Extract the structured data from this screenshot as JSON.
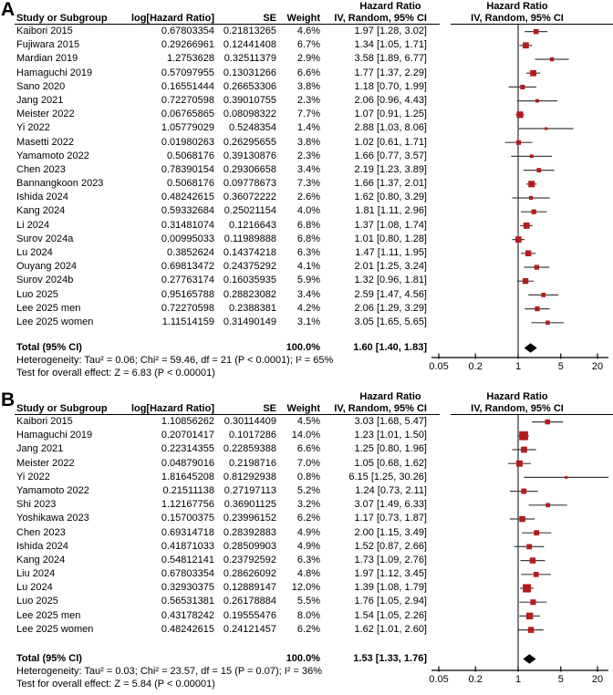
{
  "colors": {
    "marker": "#b21c1c",
    "ci_line": "#404040",
    "diamond": "#000000",
    "axis": "#000000"
  },
  "chart_data": [
    {
      "type": "forest",
      "panel_label": "A",
      "col_headers": {
        "study": "Study or Subgroup",
        "log_hr": "log[Hazard Ratio]",
        "se": "SE",
        "weight": "Weight",
        "hr_text_group": "Hazard Ratio",
        "hr_text_sub": "IV, Random, 95% CI",
        "hr_plot_group": "Hazard Ratio",
        "hr_plot_sub": "IV, Random, 95% CI"
      },
      "x_axis": {
        "scale": "log",
        "ticks": [
          0.05,
          0.2,
          1,
          5,
          20
        ]
      },
      "rows": [
        {
          "study": "Kaibori 2015",
          "log_hr": "0.67803354",
          "se": "0.21813265",
          "weight": "4.6%",
          "hr": 1.97,
          "lo": 1.28,
          "hi": 3.02,
          "ci_text": "1.97 [1.28, 3.02]"
        },
        {
          "study": "Fujiwara 2015",
          "log_hr": "0.29266961",
          "se": "0.12441408",
          "weight": "6.7%",
          "hr": 1.34,
          "lo": 1.05,
          "hi": 1.71,
          "ci_text": "1.34 [1.05, 1.71]"
        },
        {
          "study": "Mardian 2019",
          "log_hr": "1.2753628",
          "se": "0.32511379",
          "weight": "2.9%",
          "hr": 3.58,
          "lo": 1.89,
          "hi": 6.77,
          "ci_text": "3.58 [1.89, 6.77]"
        },
        {
          "study": "Hamaguchi 2019",
          "log_hr": "0.57097955",
          "se": "0.13031266",
          "weight": "6.6%",
          "hr": 1.77,
          "lo": 1.37,
          "hi": 2.29,
          "ci_text": "1.77 [1.37, 2.29]"
        },
        {
          "study": "Sano 2020",
          "log_hr": "0.16551444",
          "se": "0.26653306",
          "weight": "3.8%",
          "hr": 1.18,
          "lo": 0.7,
          "hi": 1.99,
          "ci_text": "1.18 [0.70, 1.99]"
        },
        {
          "study": "Jang 2021",
          "log_hr": "0.72270598",
          "se": "0.39010755",
          "weight": "2.3%",
          "hr": 2.06,
          "lo": 0.96,
          "hi": 4.43,
          "ci_text": "2.06 [0.96, 4.43]"
        },
        {
          "study": "Meister 2022",
          "log_hr": "0.06765865",
          "se": "0.08098322",
          "weight": "7.7%",
          "hr": 1.07,
          "lo": 0.91,
          "hi": 1.25,
          "ci_text": "1.07 [0.91, 1.25]"
        },
        {
          "study": "Yi 2022",
          "log_hr": "1.05779029",
          "se": "0.5248354",
          "weight": "1.4%",
          "hr": 2.88,
          "lo": 1.03,
          "hi": 8.06,
          "ci_text": "2.88 [1.03, 8.06]"
        },
        {
          "study": "Masetti 2022",
          "log_hr": "0.01980263",
          "se": "0.26295655",
          "weight": "3.8%",
          "hr": 1.02,
          "lo": 0.61,
          "hi": 1.71,
          "ci_text": "1.02 [0.61, 1.71]"
        },
        {
          "study": "Yamamoto 2022",
          "log_hr": "0.5068176",
          "se": "0.39130876",
          "weight": "2.3%",
          "hr": 1.66,
          "lo": 0.77,
          "hi": 3.57,
          "ci_text": "1.66 [0.77, 3.57]"
        },
        {
          "study": "Chen 2023",
          "log_hr": "0.78390154",
          "se": "0.29306658",
          "weight": "3.4%",
          "hr": 2.19,
          "lo": 1.23,
          "hi": 3.89,
          "ci_text": "2.19 [1.23, 3.89]"
        },
        {
          "study": "Bannangkoon 2023",
          "log_hr": "0.5068176",
          "se": "0.09778673",
          "weight": "7.3%",
          "hr": 1.66,
          "lo": 1.37,
          "hi": 2.01,
          "ci_text": "1.66 [1.37, 2.01]"
        },
        {
          "study": "Ishida 2024",
          "log_hr": "0.48242615",
          "se": "0.36072222",
          "weight": "2.6%",
          "hr": 1.62,
          "lo": 0.8,
          "hi": 3.29,
          "ci_text": "1.62 [0.80, 3.29]"
        },
        {
          "study": "Kang 2024",
          "log_hr": "0.59332684",
          "se": "0.25021154",
          "weight": "4.0%",
          "hr": 1.81,
          "lo": 1.11,
          "hi": 2.96,
          "ci_text": "1.81 [1.11, 2.96]"
        },
        {
          "study": "Li 2024",
          "log_hr": "0.31481074",
          "se": "0.1216643",
          "weight": "6.8%",
          "hr": 1.37,
          "lo": 1.08,
          "hi": 1.74,
          "ci_text": "1.37 [1.08, 1.74]"
        },
        {
          "study": "Surov 2024a",
          "log_hr": "0.00995033",
          "se": "0.11989888",
          "weight": "6.8%",
          "hr": 1.01,
          "lo": 0.8,
          "hi": 1.28,
          "ci_text": "1.01 [0.80, 1.28]"
        },
        {
          "study": "Lu 2024",
          "log_hr": "0.3852624",
          "se": "0.14374218",
          "weight": "6.3%",
          "hr": 1.47,
          "lo": 1.11,
          "hi": 1.95,
          "ci_text": "1.47 [1.11, 1.95]"
        },
        {
          "study": "Ouyang 2024",
          "log_hr": "0.69813472",
          "se": "0.24375292",
          "weight": "4.1%",
          "hr": 2.01,
          "lo": 1.25,
          "hi": 3.24,
          "ci_text": "2.01 [1.25, 3.24]"
        },
        {
          "study": "Surov 2024b",
          "log_hr": "0.27763174",
          "se": "0.16035935",
          "weight": "5.9%",
          "hr": 1.32,
          "lo": 0.96,
          "hi": 1.81,
          "ci_text": "1.32 [0.96, 1.81]"
        },
        {
          "study": "Luo 2025",
          "log_hr": "0.95165788",
          "se": "0.28823082",
          "weight": "3.4%",
          "hr": 2.59,
          "lo": 1.47,
          "hi": 4.56,
          "ci_text": "2.59 [1.47, 4.56]"
        },
        {
          "study": "Lee 2025 men",
          "log_hr": "0.72270598",
          "se": "0.2388381",
          "weight": "4.2%",
          "hr": 2.06,
          "lo": 1.29,
          "hi": 3.29,
          "ci_text": "2.06 [1.29, 3.29]"
        },
        {
          "study": "Lee 2025 women",
          "log_hr": "1.11514159",
          "se": "0.31490149",
          "weight": "3.1%",
          "hr": 3.05,
          "lo": 1.65,
          "hi": 5.65,
          "ci_text": "3.05 [1.65, 5.65]"
        }
      ],
      "total": {
        "label": "Total (95% CI)",
        "weight": "100.0%",
        "hr": 1.6,
        "lo": 1.4,
        "hi": 1.83,
        "ci_text": "1.60 [1.40, 1.83]"
      },
      "heterogeneity": "Heterogeneity: Tau² = 0.06; Chi² = 59.46, df = 21 (P < 0.0001); I² = 65%",
      "overall_effect": "Test for overall effect: Z = 6.83 (P < 0.00001)"
    },
    {
      "type": "forest",
      "panel_label": "B",
      "col_headers": {
        "study": "Study or Subgroup",
        "log_hr": "log[Hazard Ratio]",
        "se": "SE",
        "weight": "Weight",
        "hr_text_group": "Hazard Ratio",
        "hr_text_sub": "IV, Random, 95% CI",
        "hr_plot_group": "Hazard Ratio",
        "hr_plot_sub": "IV, Random, 95% CI"
      },
      "x_axis": {
        "scale": "log",
        "ticks": [
          0.05,
          0.2,
          1,
          5,
          20
        ]
      },
      "rows": [
        {
          "study": "Kaibori 2015",
          "log_hr": "1.10856262",
          "se": "0.30114409",
          "weight": "4.5%",
          "hr": 3.03,
          "lo": 1.68,
          "hi": 5.47,
          "ci_text": "3.03 [1.68, 5.47]"
        },
        {
          "study": "Hamaguchi 2019",
          "log_hr": "0.20701417",
          "se": "0.1017286",
          "weight": "14.0%",
          "hr": 1.23,
          "lo": 1.01,
          "hi": 1.5,
          "ci_text": "1.23 [1.01, 1.50]"
        },
        {
          "study": "Jang 2021",
          "log_hr": "0.22314355",
          "se": "0.22859388",
          "weight": "6.6%",
          "hr": 1.25,
          "lo": 0.8,
          "hi": 1.96,
          "ci_text": "1.25 [0.80, 1.96]"
        },
        {
          "study": "Meister 2022",
          "log_hr": "0.04879016",
          "se": "0.2198716",
          "weight": "7.0%",
          "hr": 1.05,
          "lo": 0.68,
          "hi": 1.62,
          "ci_text": "1.05 [0.68, 1.62]"
        },
        {
          "study": "Yi 2022",
          "log_hr": "1.81645208",
          "se": "0.81292938",
          "weight": "0.8%",
          "hr": 6.15,
          "lo": 1.25,
          "hi": 30.26,
          "ci_text": "6.15 [1.25, 30.26]"
        },
        {
          "study": "Yamamoto 2022",
          "log_hr": "0.21511138",
          "se": "0.27197113",
          "weight": "5.2%",
          "hr": 1.24,
          "lo": 0.73,
          "hi": 2.11,
          "ci_text": "1.24 [0.73, 2.11]"
        },
        {
          "study": "Shi 2023",
          "log_hr": "1.12167756",
          "se": "0.36901125",
          "weight": "3.2%",
          "hr": 3.07,
          "lo": 1.49,
          "hi": 6.33,
          "ci_text": "3.07 [1.49, 6.33]"
        },
        {
          "study": "Yoshikawa 2023",
          "log_hr": "0.15700375",
          "se": "0.23996152",
          "weight": "6.2%",
          "hr": 1.17,
          "lo": 0.73,
          "hi": 1.87,
          "ci_text": "1.17 [0.73, 1.87]"
        },
        {
          "study": "Chen 2023",
          "log_hr": "0.69314718",
          "se": "0.28392883",
          "weight": "4.9%",
          "hr": 2.0,
          "lo": 1.15,
          "hi": 3.49,
          "ci_text": "2.00 [1.15, 3.49]"
        },
        {
          "study": "Ishida 2024",
          "log_hr": "0.41871033",
          "se": "0.28509903",
          "weight": "4.9%",
          "hr": 1.52,
          "lo": 0.87,
          "hi": 2.66,
          "ci_text": "1.52 [0.87, 2.66]"
        },
        {
          "study": "Kang 2024",
          "log_hr": "0.54812141",
          "se": "0.23792592",
          "weight": "6.3%",
          "hr": 1.73,
          "lo": 1.09,
          "hi": 2.76,
          "ci_text": "1.73 [1.09, 2.76]"
        },
        {
          "study": "Liu 2024",
          "log_hr": "0.67803354",
          "se": "0.28626092",
          "weight": "4.8%",
          "hr": 1.97,
          "lo": 1.12,
          "hi": 3.45,
          "ci_text": "1.97 [1.12, 3.45]"
        },
        {
          "study": "Lu 2024",
          "log_hr": "0.32930375",
          "se": "0.12889147",
          "weight": "12.0%",
          "hr": 1.39,
          "lo": 1.08,
          "hi": 1.79,
          "ci_text": "1.39 [1.08, 1.79]"
        },
        {
          "study": "Luo 2025",
          "log_hr": "0.56531381",
          "se": "0.26178884",
          "weight": "5.5%",
          "hr": 1.76,
          "lo": 1.05,
          "hi": 2.94,
          "ci_text": "1.76 [1.05, 2.94]"
        },
        {
          "study": "Lee 2025 men",
          "log_hr": "0.43178242",
          "se": "0.19555476",
          "weight": "8.0%",
          "hr": 1.54,
          "lo": 1.05,
          "hi": 2.26,
          "ci_text": "1.54 [1.05, 2.26]"
        },
        {
          "study": "Lee 2025 women",
          "log_hr": "0.48242615",
          "se": "0.24121457",
          "weight": "6.2%",
          "hr": 1.62,
          "lo": 1.01,
          "hi": 2.6,
          "ci_text": "1.62 [1.01, 2.60]"
        }
      ],
      "total": {
        "label": "Total (95% CI)",
        "weight": "100.0%",
        "hr": 1.53,
        "lo": 1.33,
        "hi": 1.76,
        "ci_text": "1.53 [1.33, 1.76]"
      },
      "heterogeneity": "Heterogeneity: Tau² = 0.03; Chi² = 23.57, df = 15 (P = 0.07); I² = 36%",
      "overall_effect": "Test for overall effect: Z = 5.84 (P < 0.00001)"
    }
  ]
}
